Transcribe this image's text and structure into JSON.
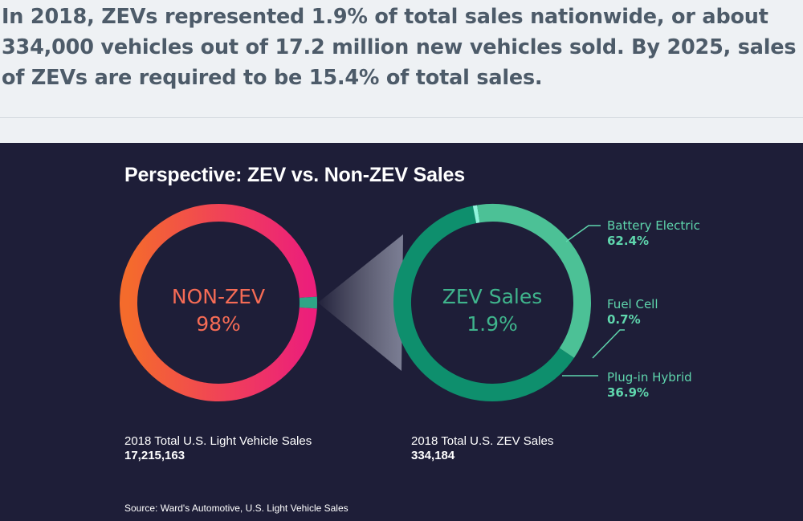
{
  "headline": "In 2018, ZEVs represented 1.9% of total sales nationwide, or about 334,000 vehicles out of 17.2 million new vehicles sold. By 2025, sales of ZEVs are required to be 15.4% of total sales.",
  "chart_data": {
    "type": "pie",
    "title": "Perspective: ZEV vs. Non-ZEV Sales",
    "charts": [
      {
        "id": "total",
        "center_label": "NON-ZEV",
        "center_value": "98%",
        "slices": [
          {
            "name": "NON-ZEV",
            "value": 98.1,
            "color": "#f0306e"
          },
          {
            "name": "ZEV",
            "value": 1.9,
            "color": "#2ea586"
          }
        ],
        "caption_label": "2018 Total U.S. Light Vehicle Sales",
        "caption_value": "17,215,163"
      },
      {
        "id": "zev",
        "center_label": "ZEV Sales",
        "center_value": "1.9%",
        "slices": [
          {
            "name": "Battery Electric",
            "value": 62.4,
            "display": "62.4%",
            "color": "#0e8f6d"
          },
          {
            "name": "Fuel Cell",
            "value": 0.7,
            "display": "0.7%",
            "color": "#8ff5dc"
          },
          {
            "name": "Plug-in Hybrid",
            "value": 36.9,
            "display": "36.9%",
            "color": "#49c092"
          }
        ],
        "caption_label": "2018 Total U.S. ZEV Sales",
        "caption_value": "334,184"
      }
    ]
  },
  "source": "Source: Ward's Automotive, U.S. Light Vehicle Sales"
}
